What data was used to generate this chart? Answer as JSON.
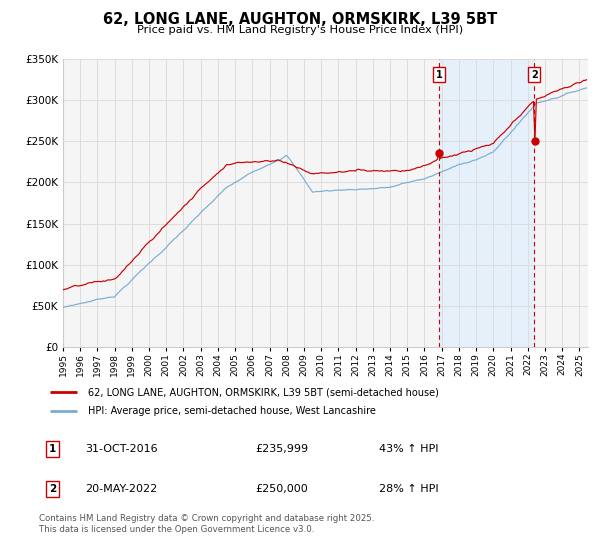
{
  "title": "62, LONG LANE, AUGHTON, ORMSKIRK, L39 5BT",
  "subtitle": "Price paid vs. HM Land Registry's House Price Index (HPI)",
  "legend_line1": "62, LONG LANE, AUGHTON, ORMSKIRK, L39 5BT (semi-detached house)",
  "legend_line2": "HPI: Average price, semi-detached house, West Lancashire",
  "marker1_date": "31-OCT-2016",
  "marker1_price": 235999,
  "marker1_hpi_text": "43% ↑ HPI",
  "marker2_date": "20-MAY-2022",
  "marker2_price": 250000,
  "marker2_hpi_text": "28% ↑ HPI",
  "vline1_x": 2016.833,
  "vline2_x": 2022.375,
  "property_color": "#cc0000",
  "hpi_color": "#7aadd4",
  "background_color": "#ffffff",
  "plot_bg_color": "#f5f5f5",
  "grid_color": "#dddddd",
  "shade_color": "#ddeeff",
  "ylim_min": 0,
  "ylim_max": 350000,
  "xlim_start": 1995.0,
  "xlim_end": 2025.5,
  "ytick_vals": [
    0,
    50000,
    100000,
    150000,
    200000,
    250000,
    300000,
    350000
  ],
  "ytick_labels": [
    "£0",
    "£50K",
    "£100K",
    "£150K",
    "£200K",
    "£250K",
    "£300K",
    "£350K"
  ],
  "footer_line1": "Contains HM Land Registry data © Crown copyright and database right 2025.",
  "footer_line2": "This data is licensed under the Open Government Licence v3.0."
}
